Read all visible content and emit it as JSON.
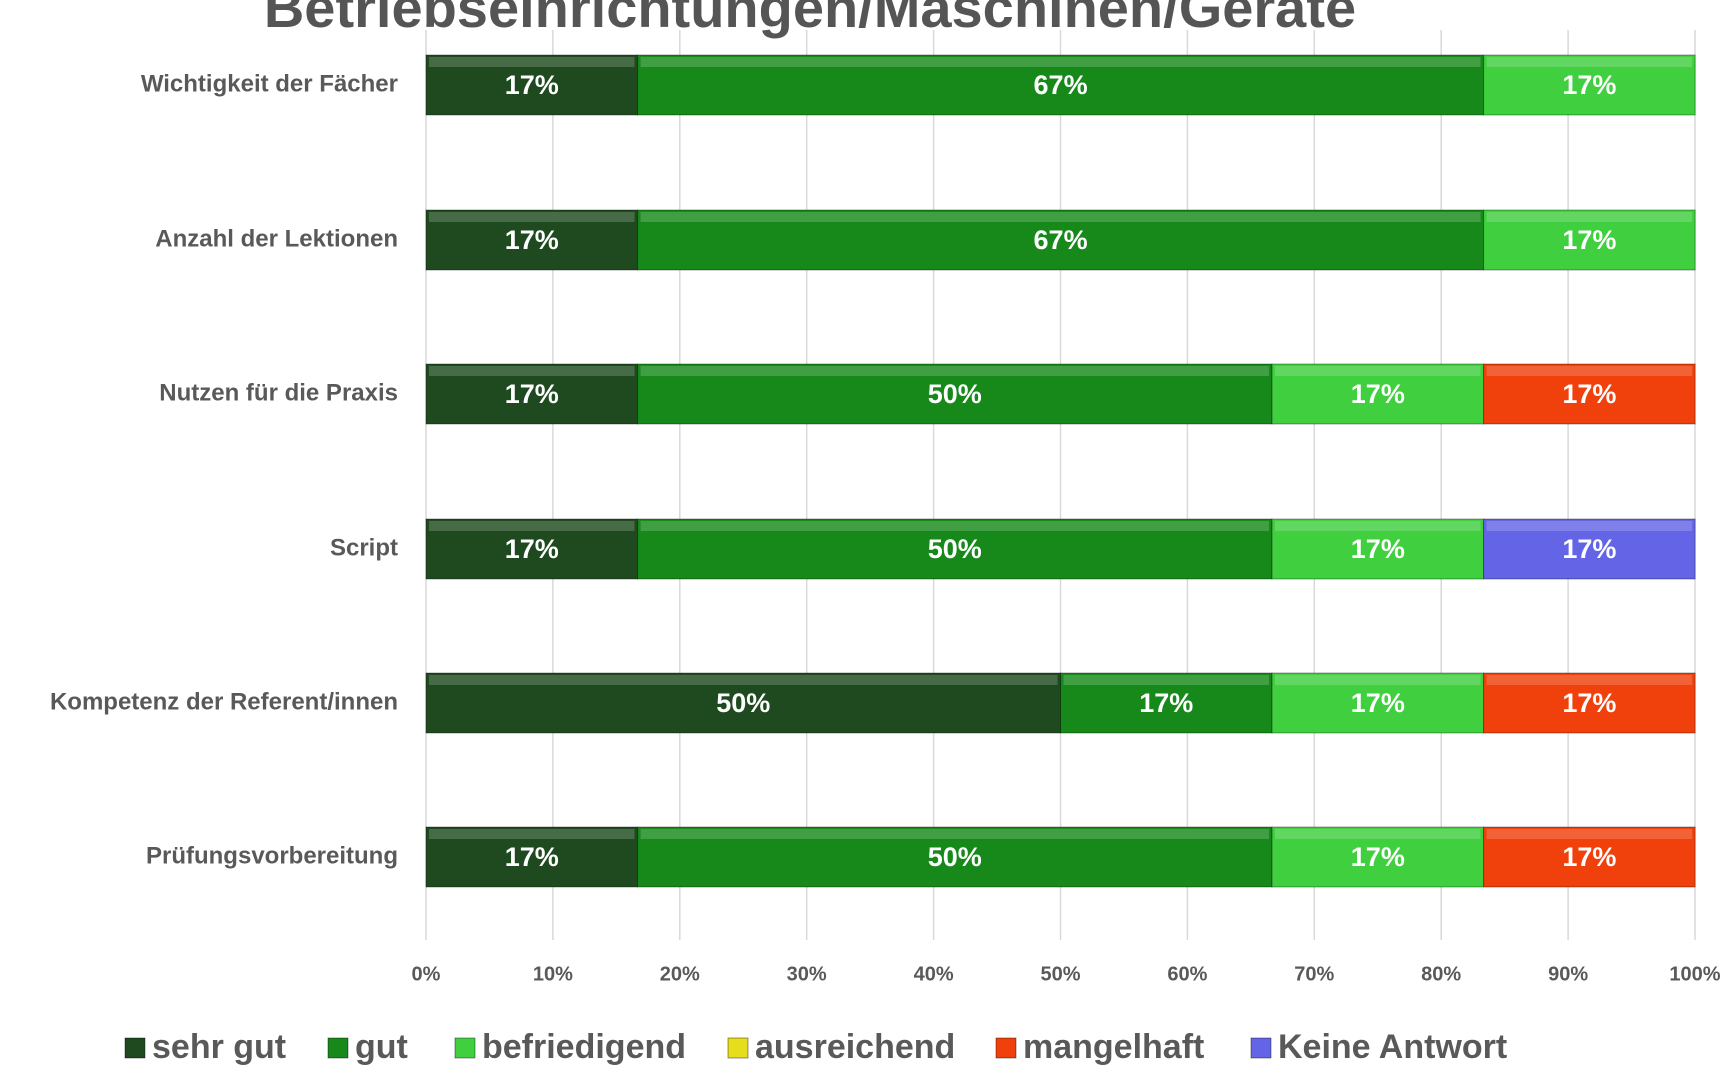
{
  "chart_data": {
    "type": "stacked-barh",
    "title": "Betriebseinrichtungen/Maschinen/Geräte",
    "categories": [
      "Wichtigkeit der Fächer",
      "Anzahl der Lektionen",
      "Nutzen für die Praxis",
      "Script",
      "Kompetenz der Referent/innen",
      "Prüfungsvorbereitung"
    ],
    "series": [
      {
        "name": "sehr gut",
        "color": "#1f4a1f",
        "values": [
          16.67,
          16.67,
          16.67,
          16.67,
          50,
          16.67
        ],
        "value_labels": [
          "17%",
          "17%",
          "17%",
          "17%",
          "50%",
          "17%"
        ]
      },
      {
        "name": "gut",
        "color": "#16891a",
        "values": [
          66.67,
          66.67,
          50,
          50,
          16.67,
          50
        ],
        "value_labels": [
          "67%",
          "67%",
          "50%",
          "50%",
          "17%",
          "50%"
        ]
      },
      {
        "name": "befriedigend",
        "color": "#3fcf3f",
        "values": [
          16.67,
          16.67,
          16.67,
          16.67,
          16.67,
          16.67
        ],
        "value_labels": [
          "17%",
          "17%",
          "17%",
          "17%",
          "17%",
          "17%"
        ]
      },
      {
        "name": "ausreichend",
        "color": "#e6dd1c",
        "values": [
          0,
          0,
          0,
          0,
          0,
          0
        ],
        "value_labels": [
          null,
          null,
          null,
          null,
          null,
          null
        ]
      },
      {
        "name": "mangelhaft",
        "color": "#f0400c",
        "values": [
          0,
          0,
          16.67,
          0,
          16.67,
          16.67
        ],
        "value_labels": [
          null,
          null,
          "17%",
          null,
          "17%",
          "17%"
        ]
      },
      {
        "name": "Keine Antwort",
        "color": "#6464e6",
        "values": [
          0,
          0,
          0,
          16.67,
          0,
          0
        ],
        "value_labels": [
          null,
          null,
          null,
          "17%",
          null,
          null
        ]
      }
    ],
    "xlim": [
      0,
      100
    ],
    "xticks": [
      {
        "value": 0,
        "label": "0%"
      },
      {
        "value": 10,
        "label": "10%"
      },
      {
        "value": 20,
        "label": "20%"
      },
      {
        "value": 30,
        "label": "30%"
      },
      {
        "value": 40,
        "label": "40%"
      },
      {
        "value": 50,
        "label": "50%"
      },
      {
        "value": 60,
        "label": "60%"
      },
      {
        "value": 70,
        "label": "70%"
      },
      {
        "value": 80,
        "label": "80%"
      },
      {
        "value": 90,
        "label": "90%"
      },
      {
        "value": 100,
        "label": "100%"
      }
    ],
    "grid": true,
    "legend": "bottom"
  }
}
